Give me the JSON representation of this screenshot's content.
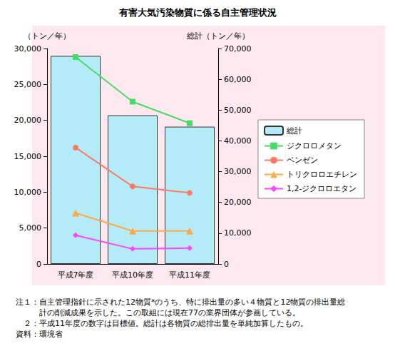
{
  "chart_data": {
    "type": "bar",
    "title": "有害大気汚染物質に係る自主管理状況",
    "y_label": "（トン／年）",
    "y2_label": "総計（トン／年）",
    "categories": [
      "平成7年度",
      "平成10年度",
      "平成11年度"
    ],
    "ylim": [
      0,
      30000
    ],
    "yticks": [
      0,
      5000,
      10000,
      15000,
      20000,
      25000,
      30000
    ],
    "y2lim": [
      0,
      70000
    ],
    "y2ticks": [
      0,
      10000,
      20000,
      30000,
      40000,
      50000,
      60000,
      70000
    ],
    "grid": false,
    "legend": "right",
    "series": [
      {
        "name": "総計",
        "type": "bar",
        "axis": "y2",
        "color": "#b3ecf8",
        "values": [
          67600,
          48300,
          44600
        ]
      },
      {
        "name": "ジクロロメタン",
        "type": "line",
        "marker": "square",
        "color": "#44dd66",
        "values": [
          28800,
          22600,
          19600
        ]
      },
      {
        "name": "ベンゼン",
        "type": "line",
        "marker": "circle",
        "color": "#ff7766",
        "values": [
          16200,
          10800,
          9900
        ]
      },
      {
        "name": "トリクロロエチレン",
        "type": "line",
        "marker": "triangle",
        "color": "#ffaa44",
        "values": [
          7100,
          4600,
          4600
        ]
      },
      {
        "name": "1,2-ジクロロエタン",
        "type": "line",
        "marker": "diamond",
        "color": "#ff44ff",
        "values": [
          4000,
          2100,
          2200
        ]
      }
    ],
    "annotations": [
      "注１：自主管理指針に示された12物質*のうち、特に排出量の多い４物質と12物質の排出量総",
      "　　　計の削減成果を示した。この取組には現在77の業界団体が参画している。",
      "　２：平成11年度の数字は目標値。総計は各物質の総排出量を単純加算したもの。",
      "資料：環境省"
    ]
  }
}
